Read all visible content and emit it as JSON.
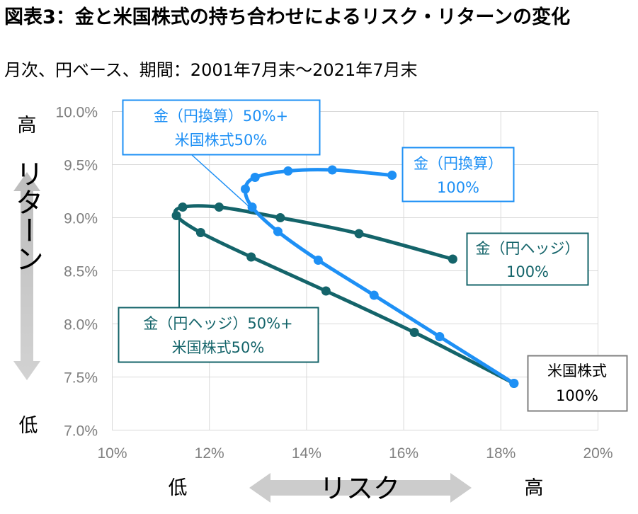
{
  "title": "図表3：金と米国株式の持ち合わせによるリスク・リターンの変化",
  "subtitle": "月次、円ベース、期間：2001年7月末～2021年7月末",
  "colors": {
    "blue": "#1e90f5",
    "teal": "#14646a",
    "arrow": "#c8c8c8",
    "grid": "#d9d9d9"
  },
  "axis_text": {
    "return_label": "リターン",
    "return_high": "高",
    "return_low": "低",
    "risk_label": "リスク",
    "risk_low": "低",
    "risk_high": "高"
  },
  "callouts": {
    "blue_mix_line1": "金（円換算）50%+",
    "blue_mix_line2": "米国株式50%",
    "blue_gold_line1": "金（円換算）",
    "blue_gold_line2": "100%",
    "teal_gold_line1": "金（円ヘッジ）",
    "teal_gold_line2": "100%",
    "teal_mix_line1": "金（円ヘッジ）50%+",
    "teal_mix_line2": "米国株式50%",
    "stock_line1": "米国株式",
    "stock_line2": "100%"
  },
  "chart_data": {
    "type": "line",
    "xlim": [
      10,
      20
    ],
    "ylim": [
      7.0,
      10.0
    ],
    "grid": true,
    "xticks": [
      "10%",
      "12%",
      "14%",
      "16%",
      "18%",
      "20%"
    ],
    "yticks": [
      "10.0%",
      "9.5%",
      "9.0%",
      "8.5%",
      "8.0%",
      "7.5%",
      "7.0%"
    ],
    "series": [
      {
        "key": "blue",
        "color": "#1e90f5",
        "points": [
          [
            18.27,
            7.44
          ],
          [
            16.74,
            7.88
          ],
          [
            15.39,
            8.27
          ],
          [
            14.24,
            8.6
          ],
          [
            13.41,
            8.87
          ],
          [
            12.88,
            9.1
          ],
          [
            12.74,
            9.27
          ],
          [
            12.94,
            9.38
          ],
          [
            13.62,
            9.44
          ],
          [
            14.53,
            9.45
          ],
          [
            15.76,
            9.4
          ]
        ]
      },
      {
        "key": "teal",
        "color": "#14646a",
        "points": [
          [
            18.27,
            7.44
          ],
          [
            16.22,
            7.92
          ],
          [
            14.4,
            8.31
          ],
          [
            12.86,
            8.63
          ],
          [
            11.82,
            8.86
          ],
          [
            11.32,
            9.02
          ],
          [
            11.45,
            9.1
          ],
          [
            12.2,
            9.1
          ],
          [
            13.46,
            9.0
          ],
          [
            15.08,
            8.85
          ],
          [
            17.01,
            8.61
          ]
        ]
      }
    ]
  }
}
